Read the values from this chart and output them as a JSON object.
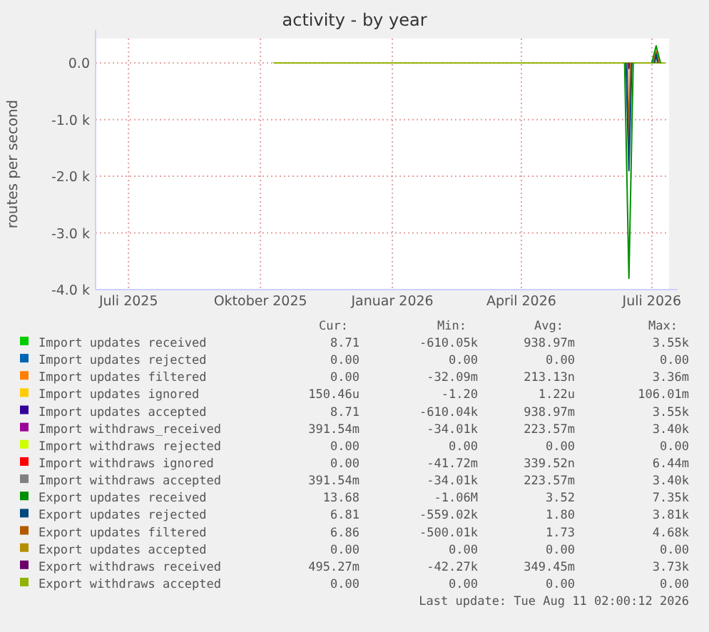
{
  "chart_data": {
    "type": "line",
    "title": "activity - by year",
    "ylabel": "routes per second",
    "xlim": [
      "2025-06-08",
      "2026-07-13"
    ],
    "xticks": [
      {
        "value": "2025-07-01",
        "label": "Juli 2025"
      },
      {
        "value": "2025-10-01",
        "label": "Oktober 2025"
      },
      {
        "value": "2026-01-01",
        "label": "Januar 2026"
      },
      {
        "value": "2026-04-01",
        "label": "April 2026"
      },
      {
        "value": "2026-07-01",
        "label": "Juli 2026"
      }
    ],
    "ylim": [
      -4000,
      430
    ],
    "yticks": [
      {
        "value": 0,
        "label": "0.0"
      },
      {
        "value": -1000,
        "label": "-1.0 k"
      },
      {
        "value": -2000,
        "label": "-2.0 k"
      },
      {
        "value": -3000,
        "label": "-3.0 k"
      },
      {
        "value": -4000,
        "label": "-4.0 k"
      }
    ],
    "grid": true,
    "legend": "bottom",
    "series": [
      {
        "name": "Import updates received",
        "color": "#00cc00"
      },
      {
        "name": "Import updates rejected",
        "color": "#0066b3"
      },
      {
        "name": "Import updates filtered",
        "color": "#ff8000"
      },
      {
        "name": "Import updates ignored",
        "color": "#ffcc00"
      },
      {
        "name": "Import updates accepted",
        "color": "#330099"
      },
      {
        "name": "Import withdraws_received",
        "color": "#990099"
      },
      {
        "name": "Import withdraws rejected",
        "color": "#ccff00"
      },
      {
        "name": "Import withdraws ignored",
        "color": "#ff0000"
      },
      {
        "name": "Import withdraws accepted",
        "color": "#808080"
      },
      {
        "name": "Export updates received",
        "color": "#008f00",
        "x": [
          "2026-06-12",
          "2026-06-15",
          "2026-06-18",
          "2026-06-25",
          "2026-07-01",
          "2026-07-04",
          "2026-07-07"
        ],
        "values": [
          0,
          -3800,
          0,
          null,
          0,
          300,
          0
        ]
      },
      {
        "name": "Export updates rejected",
        "color": "#00487d",
        "x": [
          "2026-06-13",
          "2026-06-15",
          "2026-06-17",
          "2026-06-25",
          "2026-07-03",
          "2026-07-04",
          "2026-07-05"
        ],
        "values": [
          0,
          -1900,
          0,
          null,
          0,
          150,
          0
        ]
      },
      {
        "name": "Export updates filtered",
        "color": "#b35a00",
        "x": [
          "2026-06-14",
          "2026-06-15",
          "2026-06-16",
          "2026-06-25",
          "2026-07-02",
          "2026-07-04",
          "2026-07-06"
        ],
        "values": [
          0,
          -1500,
          0,
          null,
          0,
          200,
          0
        ]
      },
      {
        "name": "Export updates accepted",
        "color": "#b38f00"
      },
      {
        "name": "Export withdraws received",
        "color": "#6b006b",
        "x": [
          "2026-06-14T12:00",
          "2026-06-15",
          "2026-06-15T12:00"
        ],
        "values": [
          0,
          -100,
          0
        ]
      },
      {
        "name": "Export withdraws accepted",
        "color": "#8fb300",
        "x": [
          "2025-10-10",
          "2026-07-10"
        ],
        "values": [
          0,
          0
        ]
      }
    ],
    "annotations": [
      "Cur:",
      "Min:",
      "Avg:",
      "Max:",
      "8.71",
      "-610.05k",
      "938.97m",
      "3.55k",
      "0.00",
      "0.00",
      "0.00",
      "0.00",
      "0.00",
      "-32.09m",
      "213.13n",
      "3.36m",
      "150.46u",
      "-1.20",
      "1.22u",
      "106.01m",
      "8.71",
      "-610.04k",
      "938.97m",
      "3.55k",
      "391.54m",
      "-34.01k",
      "223.57m",
      "3.40k",
      "0.00",
      "0.00",
      "0.00",
      "0.00",
      "0.00",
      "-41.72m",
      "339.52n",
      "6.44m",
      "391.54m",
      "-34.01k",
      "223.57m",
      "3.40k",
      "13.68",
      "-1.06M",
      "3.52",
      "7.35k",
      "6.81",
      "-559.02k",
      "1.80",
      "3.81k",
      "6.86",
      "-500.01k",
      "1.73",
      "4.68k",
      "0.00",
      "0.00",
      "0.00",
      "0.00",
      "495.27m",
      "-42.27k",
      "349.45m",
      "3.73k",
      "0.00",
      "0.00",
      "0.00",
      "0.00",
      "Last update: Tue Aug 11 02:00:12 2026"
    ]
  }
}
